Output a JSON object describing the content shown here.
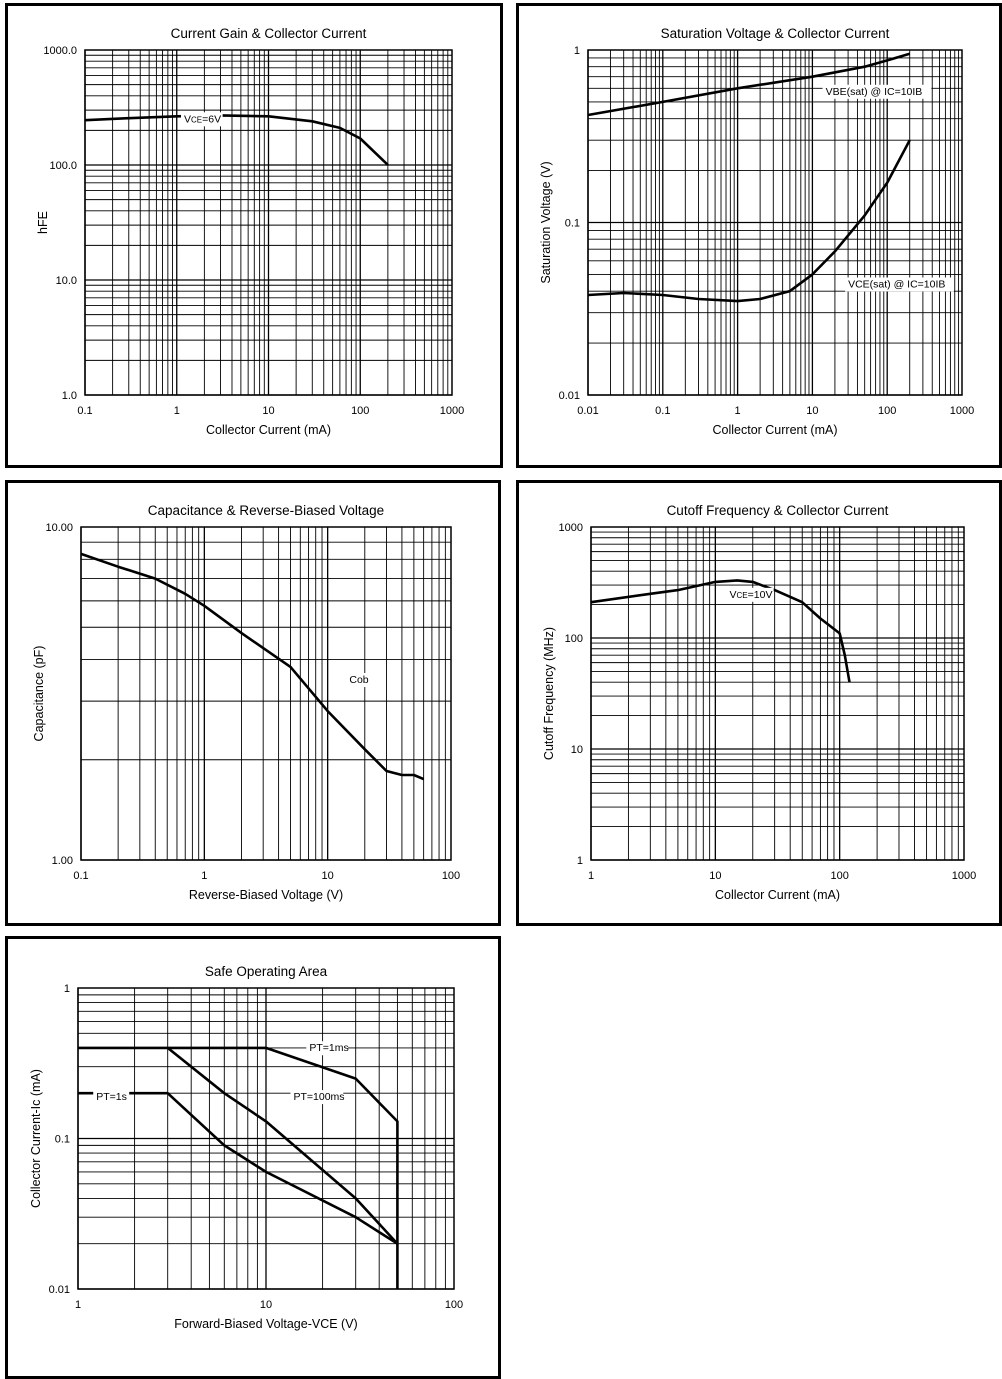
{
  "chart_data": [
    {
      "type": "line",
      "title": "Current Gain & Collector Current",
      "xlabel": "Collector Current (mA)",
      "ylabel": "hFE",
      "xscale": "log",
      "yscale": "log",
      "xlim": [
        0.1,
        1000
      ],
      "ylim": [
        1.0,
        1000.0
      ],
      "xticks": [
        "0.1",
        "1",
        "10",
        "100",
        "1000"
      ],
      "yticks": [
        "1.0",
        "10.0",
        "100.0",
        "1000.0"
      ],
      "grid": true,
      "annotations": [
        {
          "text": "VCE=6V",
          "main": "V",
          "sub": "CE",
          "rest": "=6V",
          "x": 1.2,
          "y": 235
        }
      ],
      "series": [
        {
          "x": [
            0.1,
            0.3,
            1,
            3,
            10,
            30,
            60,
            100,
            150,
            200
          ],
          "y": [
            245,
            255,
            265,
            270,
            265,
            240,
            210,
            170,
            125,
            100
          ]
        }
      ]
    },
    {
      "type": "line",
      "title": "Saturation Voltage & Collector Current",
      "xlabel": "Collector Current (mA)",
      "ylabel": "Saturation Voltage (V)",
      "xscale": "log",
      "yscale": "log",
      "xlim": [
        0.01,
        1000
      ],
      "ylim": [
        0.01,
        1
      ],
      "xticks": [
        "0.01",
        "0.1",
        "1",
        "10",
        "100",
        "1000"
      ],
      "yticks": [
        "0.01",
        "0.1",
        "1"
      ],
      "grid": true,
      "annotations": [
        {
          "text": "VBE(sat) @ IC=10IB",
          "x": 15,
          "y": 0.55
        },
        {
          "text": "VCE(sat) @ IC=10IB",
          "x": 30,
          "y": 0.042
        }
      ],
      "series": [
        {
          "name": "VBE(sat)",
          "x": [
            0.01,
            0.1,
            1,
            10,
            50,
            100,
            200
          ],
          "y": [
            0.42,
            0.5,
            0.6,
            0.7,
            0.8,
            0.87,
            0.95
          ]
        },
        {
          "name": "VCE(sat)",
          "x": [
            0.01,
            0.03,
            0.1,
            0.3,
            1,
            2,
            5,
            10,
            20,
            50,
            100,
            200
          ],
          "y": [
            0.038,
            0.039,
            0.038,
            0.036,
            0.035,
            0.036,
            0.04,
            0.05,
            0.068,
            0.11,
            0.17,
            0.3
          ]
        }
      ]
    },
    {
      "type": "line",
      "title": "Capacitance & Reverse-Biased Voltage",
      "xlabel": "Reverse-Biased Voltage (V)",
      "ylabel": "Capacitance (pF)",
      "xscale": "log",
      "yscale": "log",
      "xlim": [
        0.1,
        100
      ],
      "ylim": [
        1.0,
        10.0
      ],
      "xticks": [
        "0.1",
        "1",
        "10",
        "100"
      ],
      "yticks": [
        "1.00",
        "10.00"
      ],
      "grid": true,
      "annotations": [
        {
          "text": "Cob",
          "x": 15,
          "y": 3.4
        }
      ],
      "series": [
        {
          "name": "Cob",
          "x": [
            0.1,
            0.2,
            0.4,
            0.7,
            1,
            2,
            5,
            10,
            20,
            30,
            40,
            50,
            60
          ],
          "y": [
            8.3,
            7.6,
            7.0,
            6.3,
            5.8,
            4.8,
            3.8,
            2.8,
            2.15,
            1.85,
            1.8,
            1.8,
            1.75
          ]
        }
      ]
    },
    {
      "type": "line",
      "title": "Cutoff Frequency & Collector Current",
      "xlabel": "Collector Current (mA)",
      "ylabel": "Cutoff Frequency (MHz)",
      "xscale": "log",
      "yscale": "log",
      "xlim": [
        1,
        1000
      ],
      "ylim": [
        1,
        1000
      ],
      "xticks": [
        "1",
        "10",
        "100",
        "1000"
      ],
      "yticks": [
        "1",
        "10",
        "100",
        "1000"
      ],
      "grid": true,
      "annotations": [
        {
          "text": "VCE=10V",
          "main": "V",
          "sub": "CE",
          "rest": "=10V",
          "x": 13,
          "y": 230
        }
      ],
      "series": [
        {
          "x": [
            1,
            3,
            5,
            10,
            15,
            20,
            30,
            50,
            70,
            100,
            110,
            120
          ],
          "y": [
            210,
            250,
            270,
            320,
            330,
            320,
            270,
            210,
            150,
            110,
            70,
            40
          ]
        }
      ]
    },
    {
      "type": "line",
      "title": "Safe Operating Area",
      "xlabel": "Forward-Biased Voltage-VCE (V)",
      "ylabel": "Collector Current-Ic (mA)",
      "xscale": "log",
      "yscale": "log",
      "xlim": [
        1,
        100
      ],
      "ylim": [
        0.01,
        1
      ],
      "xticks": [
        "1",
        "10",
        "100"
      ],
      "yticks": [
        "0.01",
        "0.1",
        "1"
      ],
      "grid": true,
      "annotations": [
        {
          "text": "PT=1ms",
          "x": 17,
          "y": 0.38
        },
        {
          "text": "PT=100ms",
          "x": 14,
          "y": 0.18
        },
        {
          "text": "PT=1s",
          "x": 1.25,
          "y": 0.18
        }
      ],
      "series": [
        {
          "name": "PT=1ms",
          "x": [
            1,
            10,
            30,
            50,
            50
          ],
          "y": [
            0.4,
            0.4,
            0.25,
            0.13,
            0.01
          ]
        },
        {
          "name": "PT=100ms",
          "x": [
            3,
            6,
            10,
            30,
            50
          ],
          "y": [
            0.4,
            0.2,
            0.13,
            0.04,
            0.02
          ]
        },
        {
          "name": "PT=1s",
          "x": [
            1,
            3,
            6,
            10,
            30,
            50
          ],
          "y": [
            0.2,
            0.2,
            0.09,
            0.06,
            0.03,
            0.02
          ]
        }
      ]
    }
  ]
}
